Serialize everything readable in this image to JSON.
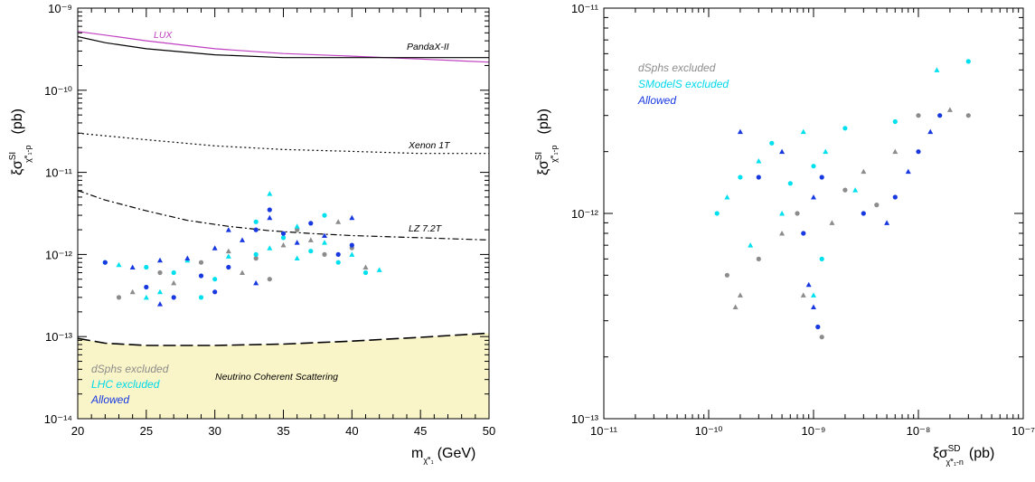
{
  "chart_data": [
    {
      "type": "scatter",
      "xlabel": "m",
      "xlabel_sub": "χ̃°₁",
      "xlabel_unit": "(GeV)",
      "ylabel": "ξσ",
      "ylabel_sup": "SI",
      "ylabel_sub": "χ̃°₁-p",
      "ylabel_unit": "(pb)",
      "xlim": [
        20,
        50
      ],
      "ylim": [
        1e-14,
        1e-09
      ],
      "yscale": "log",
      "xticks": [
        "20",
        "25",
        "30",
        "35",
        "40",
        "45",
        "50"
      ],
      "yticks": [
        "10⁻¹⁴",
        "10⁻¹³",
        "10⁻¹²",
        "10⁻¹¹",
        "10⁻¹⁰",
        "10⁻⁹"
      ],
      "region": {
        "label": "Neutrino  Coherent  Scattering",
        "color": "#faf5c8",
        "upper_bound": "neutrino-floor"
      },
      "curves": [
        {
          "name": "LUX",
          "color": "#c040c0",
          "style": "solid",
          "x": [
            20,
            22,
            25,
            30,
            35,
            40,
            45,
            50
          ],
          "y": [
            5.2e-10,
            4.7e-10,
            4e-10,
            3.2e-10,
            2.8e-10,
            2.6e-10,
            2.4e-10,
            2.2e-10
          ]
        },
        {
          "name": "PandaX-II",
          "color": "#000000",
          "style": "solid",
          "x": [
            20,
            22,
            25,
            30,
            35,
            40,
            45,
            50
          ],
          "y": [
            4.5e-10,
            3.8e-10,
            3.2e-10,
            2.7e-10,
            2.5e-10,
            2.5e-10,
            2.5e-10,
            2.5e-10
          ]
        },
        {
          "name": "Xenon 1T",
          "color": "#000000",
          "style": "dotted",
          "x": [
            20,
            25,
            30,
            35,
            40,
            45,
            50
          ],
          "y": [
            3e-11,
            2.5e-11,
            2.1e-11,
            1.9e-11,
            1.8e-11,
            1.7e-11,
            1.7e-11
          ]
        },
        {
          "name": "LZ 7.2T",
          "color": "#000000",
          "style": "dashdot",
          "x": [
            20,
            22,
            25,
            28,
            31,
            34,
            37,
            40,
            45,
            50
          ],
          "y": [
            6e-12,
            4.6e-12,
            3.4e-12,
            2.6e-12,
            2.2e-12,
            1.95e-12,
            1.8e-12,
            1.7e-12,
            1.6e-12,
            1.5e-12
          ]
        },
        {
          "name": "neutrino-floor",
          "color": "#000000",
          "style": "longdash",
          "x": [
            20,
            22,
            25,
            30,
            35,
            40,
            45,
            50
          ],
          "y": [
            9.5e-14,
            8.3e-14,
            7.8e-14,
            7.8e-14,
            8.1e-14,
            8.8e-14,
            9.8e-14,
            1.1e-13
          ]
        }
      ],
      "series": [
        {
          "name": "dSphs excluded",
          "color": "#8c8c8c",
          "points": [
            [
              23,
              3e-13
            ],
            [
              24,
              3.5e-13
            ],
            [
              26,
              6e-13
            ],
            [
              27,
              4.5e-13
            ],
            [
              29,
              8e-13
            ],
            [
              31,
              1.1e-12
            ],
            [
              33,
              9e-13
            ],
            [
              35,
              1.3e-12
            ],
            [
              36,
              2e-12
            ],
            [
              37,
              1.5e-12
            ],
            [
              38,
              1e-12
            ],
            [
              39,
              2.5e-12
            ],
            [
              40,
              1.2e-12
            ],
            [
              41,
              7e-13
            ],
            [
              34,
              5e-13
            ],
            [
              32,
              6e-13
            ]
          ]
        },
        {
          "name": "LHC excluded",
          "color": "#00e0ee",
          "points": [
            [
              22,
              8e-13
            ],
            [
              23,
              7.5e-13
            ],
            [
              25,
              7e-13
            ],
            [
              26,
              3.5e-13
            ],
            [
              27,
              6e-13
            ],
            [
              28,
              8.5e-13
            ],
            [
              30,
              5e-13
            ],
            [
              31,
              9.5e-13
            ],
            [
              33,
              1e-12
            ],
            [
              34,
              1.2e-12
            ],
            [
              35,
              1.6e-12
            ],
            [
              36,
              9e-13
            ],
            [
              37,
              1.1e-12
            ],
            [
              38,
              1.4e-12
            ],
            [
              39,
              8e-13
            ],
            [
              40,
              1e-12
            ],
            [
              41,
              6e-13
            ],
            [
              42,
              6.5e-13
            ],
            [
              38,
              3e-12
            ],
            [
              34,
              5.5e-12
            ],
            [
              33,
              2.5e-12
            ],
            [
              36,
              2.2e-12
            ],
            [
              29,
              3e-13
            ],
            [
              25,
              3e-13
            ]
          ]
        },
        {
          "name": "Allowed",
          "color": "#1838e0",
          "points": [
            [
              22,
              8e-13
            ],
            [
              24,
              7e-13
            ],
            [
              25,
              4e-13
            ],
            [
              26,
              8.5e-13
            ],
            [
              27,
              3e-13
            ],
            [
              28,
              9e-13
            ],
            [
              29,
              5.5e-13
            ],
            [
              30,
              1.2e-12
            ],
            [
              31,
              7e-13
            ],
            [
              32,
              1.5e-12
            ],
            [
              33,
              2e-12
            ],
            [
              34,
              2.8e-12
            ],
            [
              35,
              1.8e-12
            ],
            [
              36,
              1.4e-12
            ],
            [
              37,
              2.4e-12
            ],
            [
              38,
              1.7e-12
            ],
            [
              39,
              1e-12
            ],
            [
              40,
              2.8e-12
            ],
            [
              40,
              1.3e-12
            ],
            [
              33,
              4.5e-13
            ],
            [
              30,
              3.5e-13
            ],
            [
              26,
              2.5e-13
            ],
            [
              34,
              3.5e-12
            ],
            [
              31,
              2e-12
            ]
          ]
        }
      ],
      "legend": {
        "placement": "bottom-left",
        "entries": [
          "dSphs excluded",
          "LHC excluded",
          "Allowed"
        ]
      }
    },
    {
      "type": "scatter",
      "xlabel": "ξσ",
      "xlabel_sup": "SD",
      "xlabel_sub": "χ̃°₁-n",
      "xlabel_unit": "(pb)",
      "ylabel": "ξσ",
      "ylabel_sup": "SI",
      "ylabel_sub": "χ̃°₁-p",
      "ylabel_unit": "(pb)",
      "xlim": [
        1e-11,
        1e-07
      ],
      "ylim": [
        1e-13,
        1e-11
      ],
      "xscale": "log",
      "yscale": "log",
      "xticks": [
        "10⁻¹¹",
        "10⁻¹⁰",
        "10⁻⁹",
        "10⁻⁸",
        "10⁻⁷"
      ],
      "yticks": [
        "10⁻¹³",
        "10⁻¹²",
        "10⁻¹¹"
      ],
      "series": [
        {
          "name": "dSphs excluded",
          "color": "#8c8c8c",
          "points": [
            [
              1.5e-10,
              5e-13
            ],
            [
              2e-10,
              4e-13
            ],
            [
              3e-10,
              6e-13
            ],
            [
              5e-10,
              8e-13
            ],
            [
              7e-10,
              1e-12
            ],
            [
              1.5e-09,
              9e-13
            ],
            [
              2e-09,
              1.3e-12
            ],
            [
              3e-09,
              1.6e-12
            ],
            [
              4e-09,
              1.1e-12
            ],
            [
              6e-09,
              2e-12
            ],
            [
              1e-08,
              3e-12
            ],
            [
              2e-08,
              3.2e-12
            ],
            [
              3e-08,
              3e-12
            ],
            [
              8e-10,
              4e-13
            ],
            [
              1.2e-09,
              2.5e-13
            ],
            [
              1.8e-10,
              3.5e-13
            ]
          ]
        },
        {
          "name": "SModelS excluded",
          "color": "#00e0ee",
          "points": [
            [
              1.2e-10,
              1e-12
            ],
            [
              1.5e-10,
              1.2e-12
            ],
            [
              2e-10,
              1.5e-12
            ],
            [
              3e-10,
              1.8e-12
            ],
            [
              4e-10,
              2.2e-12
            ],
            [
              5e-10,
              1e-12
            ],
            [
              6e-10,
              1.4e-12
            ],
            [
              8e-10,
              2.5e-12
            ],
            [
              1e-09,
              1.7e-12
            ],
            [
              1.3e-09,
              2e-12
            ],
            [
              2e-09,
              2.6e-12
            ],
            [
              2.5e-09,
              1.3e-12
            ],
            [
              6e-09,
              2.8e-12
            ],
            [
              1.5e-08,
              5e-12
            ],
            [
              3e-08,
              5.5e-12
            ],
            [
              1e-09,
              4e-13
            ],
            [
              1.2e-09,
              6e-13
            ],
            [
              2.5e-10,
              7e-13
            ]
          ]
        },
        {
          "name": "Allowed",
          "color": "#1838e0",
          "points": [
            [
              3e-10,
              1.5e-12
            ],
            [
              5e-10,
              2e-12
            ],
            [
              8e-10,
              8e-13
            ],
            [
              1e-09,
              1.2e-12
            ],
            [
              1.2e-09,
              1.5e-12
            ],
            [
              1e-09,
              3.5e-13
            ],
            [
              1.1e-09,
              2.8e-13
            ],
            [
              9e-10,
              4.5e-13
            ],
            [
              6e-09,
              1.2e-12
            ],
            [
              8e-09,
              1.6e-12
            ],
            [
              1e-08,
              2e-12
            ],
            [
              1.3e-08,
              2.5e-12
            ],
            [
              1.6e-08,
              3e-12
            ],
            [
              5e-09,
              9e-13
            ],
            [
              3e-09,
              1e-12
            ],
            [
              2e-10,
              2.5e-12
            ]
          ]
        }
      ],
      "legend": {
        "placement": "top-left",
        "entries": [
          "dSphs excluded",
          "SModelS excluded",
          "Allowed"
        ]
      }
    }
  ]
}
